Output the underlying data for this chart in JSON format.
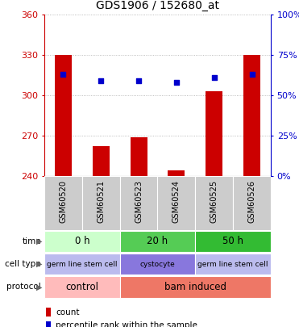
{
  "title": "GDS1906 / 152680_at",
  "samples": [
    "GSM60520",
    "GSM60521",
    "GSM60523",
    "GSM60524",
    "GSM60525",
    "GSM60526"
  ],
  "counts": [
    330,
    262,
    269,
    244,
    303,
    330
  ],
  "percentile_ranks": [
    63,
    59,
    59,
    58,
    61,
    63
  ],
  "ymin": 240,
  "ymax": 360,
  "yticks": [
    240,
    270,
    300,
    330,
    360
  ],
  "y2min": 0,
  "y2max": 100,
  "y2ticks": [
    0,
    25,
    50,
    75,
    100
  ],
  "bar_color": "#cc0000",
  "dot_color": "#0000cc",
  "bar_bottom": 240,
  "time_groups": [
    {
      "label": "0 h",
      "start": 0,
      "end": 2,
      "color": "#ccffcc"
    },
    {
      "label": "20 h",
      "start": 2,
      "end": 4,
      "color": "#55cc55"
    },
    {
      "label": "50 h",
      "start": 4,
      "end": 6,
      "color": "#33bb33"
    }
  ],
  "cell_type_groups": [
    {
      "label": "germ line stem cell",
      "start": 0,
      "end": 2,
      "color": "#bbbbee"
    },
    {
      "label": "cystocyte",
      "start": 2,
      "end": 4,
      "color": "#8877dd"
    },
    {
      "label": "germ line stem cell",
      "start": 4,
      "end": 6,
      "color": "#bbbbee"
    }
  ],
  "protocol_groups": [
    {
      "label": "control",
      "start": 0,
      "end": 2,
      "color": "#ffbbbb"
    },
    {
      "label": "bam induced",
      "start": 2,
      "end": 6,
      "color": "#ee7766"
    }
  ],
  "sample_bg_color": "#cccccc",
  "grid_color": "#aaaaaa",
  "legend_count_color": "#cc0000",
  "legend_pct_color": "#0000cc",
  "row_labels": [
    "time",
    "cell type",
    "protocol"
  ],
  "row_label_color": "#444444"
}
